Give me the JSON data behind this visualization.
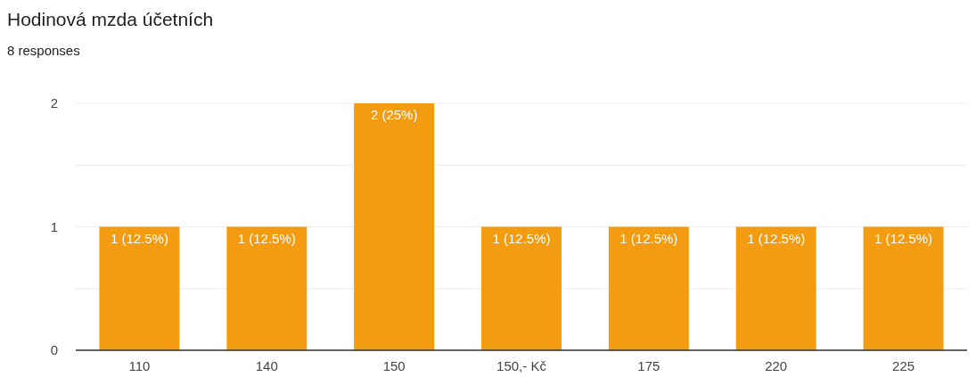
{
  "chart_data": {
    "type": "bar",
    "title": "Hodinová mzda účetních",
    "subtitle": "8 responses",
    "categories": [
      "110",
      "140",
      "150",
      "150,- Kč",
      "175",
      "220",
      "225"
    ],
    "values": [
      1,
      1,
      2,
      1,
      1,
      1,
      1
    ],
    "value_labels": [
      "1 (12.5%)",
      "1 (12.5%)",
      "2 (25%)",
      "1 (12.5%)",
      "1 (12.5%)",
      "1 (12.5%)",
      "1 (12.5%)"
    ],
    "color": "#f39c12",
    "ylim": [
      0,
      2
    ],
    "yticks": [
      0,
      {
        "value": 0.5,
        "label": null
      },
      1,
      {
        "value": 1.5,
        "label": null
      },
      2
    ],
    "grid": "y"
  }
}
